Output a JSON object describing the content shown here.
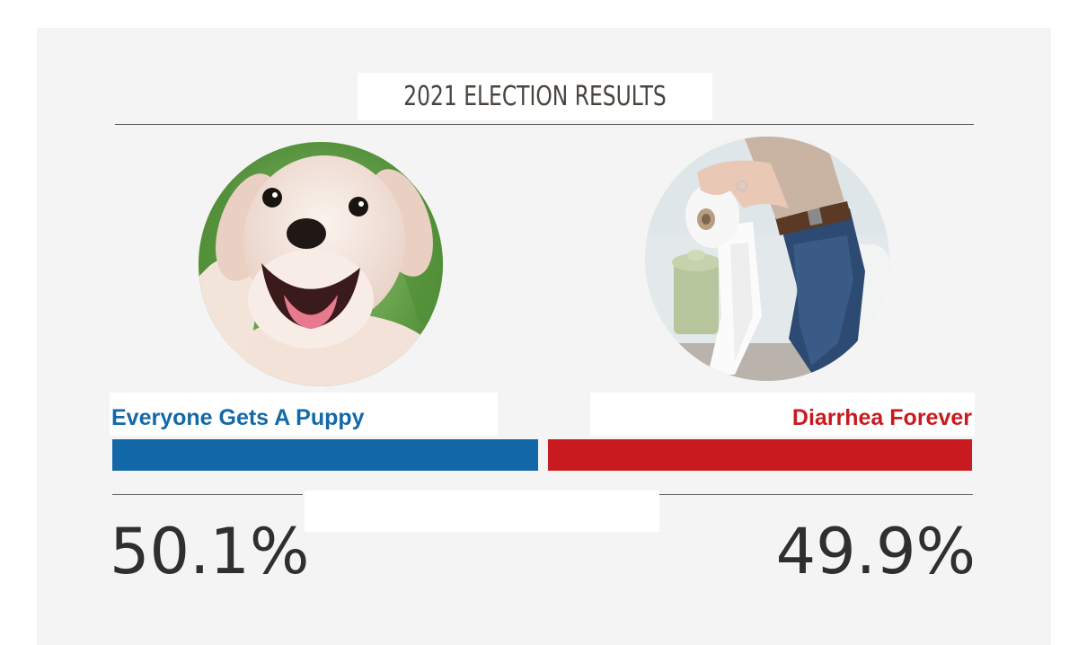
{
  "title": "2021 ELECTION RESULTS",
  "colors": {
    "background": "#f4f4f4",
    "candidate_left": "#1369a8",
    "candidate_right": "#c91b1f",
    "title_text": "#4a443f",
    "percent_text": "#2f2f2f"
  },
  "candidates": [
    {
      "name": "Everyone Gets A Puppy",
      "percent_label": "50.1%",
      "share": 50.1,
      "image": "puppy-photo",
      "color": "#1369a8"
    },
    {
      "name": "Diarrhea Forever",
      "percent_label": "49.9%",
      "share": 49.9,
      "image": "toilet-paper-photo",
      "color": "#c91b1f"
    }
  ]
}
